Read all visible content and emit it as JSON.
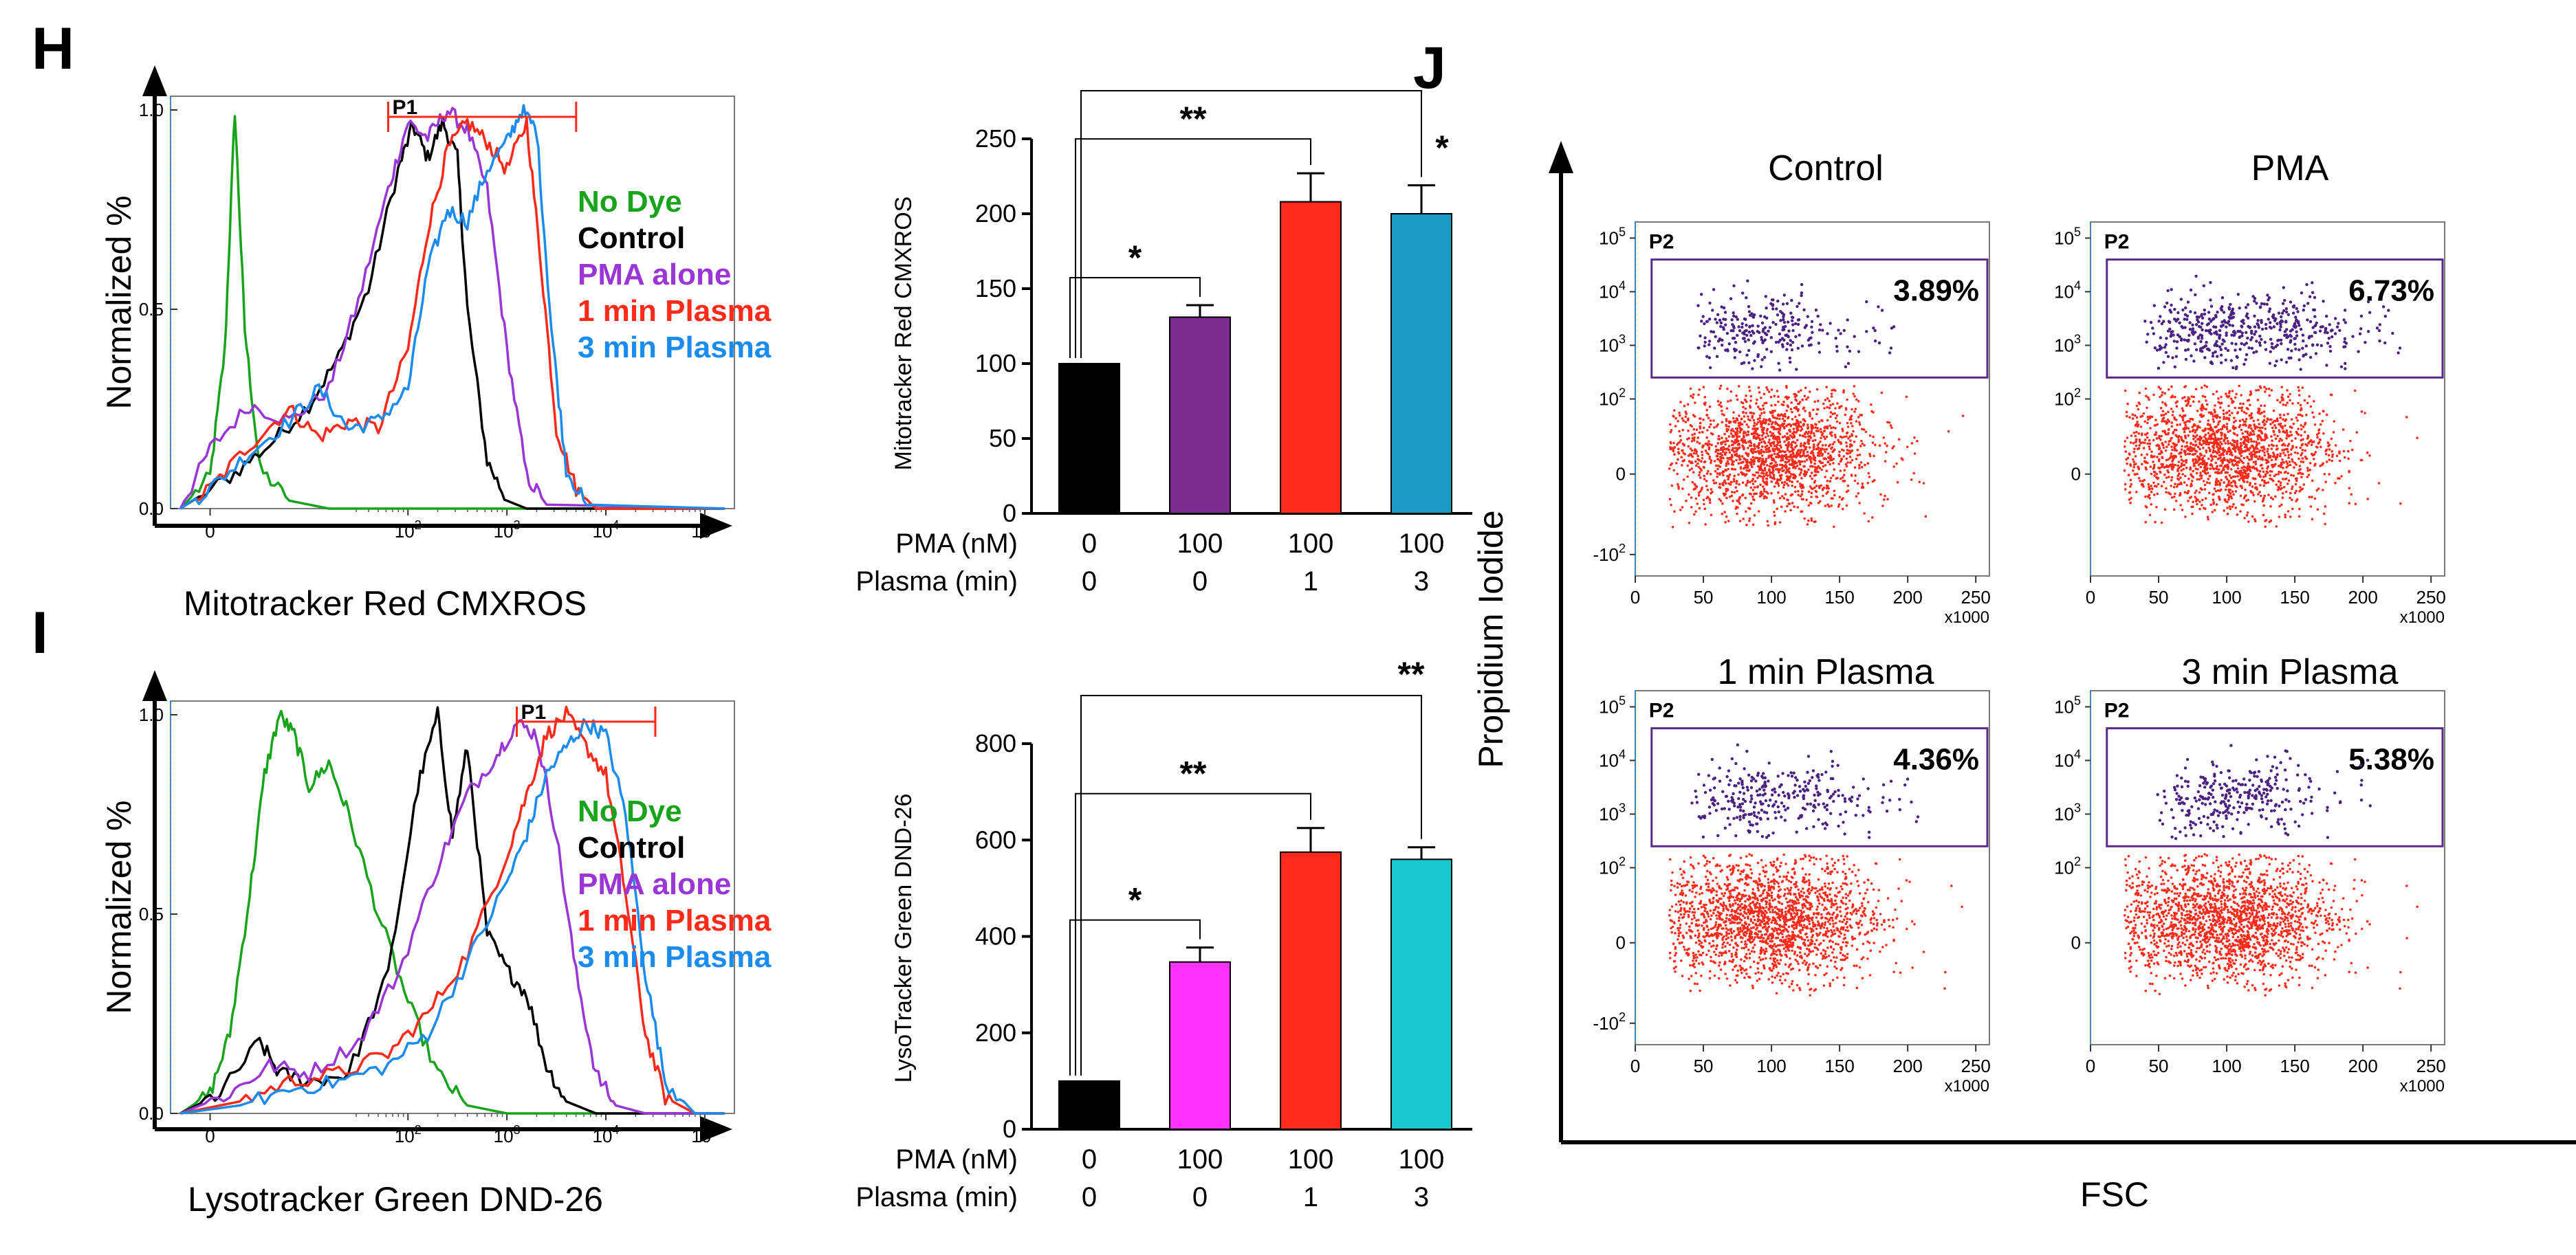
{
  "figure": {
    "panel_h": "H",
    "panel_i": "I",
    "panel_j": "J"
  },
  "colors": {
    "no_dye": "#18a31c",
    "control": "#000000",
    "pma": "#9a35d6",
    "plasma1": "#ff2a1a",
    "plasma3": "#1a8cf0",
    "bar_pma_mito": "#7b2d8e",
    "bar_pma_lyso": "#ff33ff",
    "bar_red": "#ff2a1a",
    "bar_teal_mito": "#1a9bc4",
    "bar_teal_lyso": "#17c9cf",
    "gate": "#5a2a8a",
    "dots_inside": "#4b2181",
    "dots_outside": "#ff2a1a"
  },
  "chart_data": [
    {
      "id": "H-histogram",
      "type": "line",
      "xlabel": "Mitotracker Red CMXROS",
      "ylabel": "Normalized %",
      "y_ticks": [
        "0.0",
        "0.5",
        "1.0"
      ],
      "x_ticks": [
        {
          "base": "0",
          "exp": ""
        },
        {
          "base": "10",
          "exp": "2"
        },
        {
          "base": "10",
          "exp": "3"
        },
        {
          "base": "10",
          "exp": "4"
        },
        {
          "base": "10",
          "exp": "5"
        }
      ],
      "xlim_decades": [
        -0.4,
        5.3
      ],
      "ylim": [
        0,
        1.0
      ],
      "gate": {
        "label": "P1",
        "from_decade": 1.8,
        "to_decade": 3.7
      },
      "legend": [
        "No Dye",
        "Control",
        "PMA alone",
        "1 min Plasma",
        "3 min Plasma"
      ],
      "series": [
        {
          "name": "No Dye",
          "points": [
            [
              -0.3,
              0.0
            ],
            [
              0.0,
              0.08
            ],
            [
              0.15,
              0.4
            ],
            [
              0.25,
              1.0
            ],
            [
              0.35,
              0.45
            ],
            [
              0.5,
              0.1
            ],
            [
              0.8,
              0.02
            ],
            [
              1.2,
              0.0
            ],
            [
              5.2,
              0.0
            ]
          ]
        },
        {
          "name": "Control",
          "points": [
            [
              -0.3,
              0.0
            ],
            [
              0.2,
              0.08
            ],
            [
              0.6,
              0.16
            ],
            [
              1.0,
              0.26
            ],
            [
              1.3,
              0.38
            ],
            [
              1.6,
              0.55
            ],
            [
              1.9,
              0.85
            ],
            [
              2.05,
              0.96
            ],
            [
              2.2,
              0.88
            ],
            [
              2.35,
              0.97
            ],
            [
              2.5,
              0.88
            ],
            [
              2.6,
              0.5
            ],
            [
              2.8,
              0.12
            ],
            [
              3.0,
              0.02
            ],
            [
              3.2,
              0.0
            ],
            [
              5.2,
              0.0
            ]
          ]
        },
        {
          "name": "PMA alone",
          "points": [
            [
              -0.3,
              0.0
            ],
            [
              0.0,
              0.15
            ],
            [
              0.4,
              0.26
            ],
            [
              0.8,
              0.22
            ],
            [
              1.2,
              0.3
            ],
            [
              1.5,
              0.52
            ],
            [
              1.8,
              0.8
            ],
            [
              2.0,
              0.97
            ],
            [
              2.2,
              0.93
            ],
            [
              2.4,
              1.0
            ],
            [
              2.6,
              0.95
            ],
            [
              2.8,
              0.8
            ],
            [
              3.0,
              0.4
            ],
            [
              3.2,
              0.08
            ],
            [
              3.4,
              0.01
            ],
            [
              5.2,
              0.0
            ]
          ]
        },
        {
          "name": "1 min Plasma",
          "points": [
            [
              -0.3,
              0.0
            ],
            [
              0.0,
              0.05
            ],
            [
              0.4,
              0.16
            ],
            [
              0.8,
              0.25
            ],
            [
              1.1,
              0.18
            ],
            [
              1.4,
              0.22
            ],
            [
              1.7,
              0.2
            ],
            [
              2.0,
              0.4
            ],
            [
              2.2,
              0.7
            ],
            [
              2.4,
              0.9
            ],
            [
              2.6,
              0.97
            ],
            [
              2.8,
              0.92
            ],
            [
              3.0,
              0.85
            ],
            [
              3.2,
              0.97
            ],
            [
              3.35,
              0.6
            ],
            [
              3.5,
              0.2
            ],
            [
              3.7,
              0.05
            ],
            [
              3.9,
              0.0
            ],
            [
              5.2,
              0.0
            ]
          ]
        },
        {
          "name": "3 min Plasma",
          "points": [
            [
              -0.3,
              0.0
            ],
            [
              0.0,
              0.05
            ],
            [
              0.4,
              0.14
            ],
            [
              0.8,
              0.22
            ],
            [
              1.1,
              0.3
            ],
            [
              1.4,
              0.2
            ],
            [
              1.7,
              0.22
            ],
            [
              2.0,
              0.3
            ],
            [
              2.2,
              0.6
            ],
            [
              2.4,
              0.75
            ],
            [
              2.6,
              0.72
            ],
            [
              2.8,
              0.85
            ],
            [
              3.0,
              0.92
            ],
            [
              3.15,
              1.0
            ],
            [
              3.3,
              0.95
            ],
            [
              3.45,
              0.45
            ],
            [
              3.6,
              0.1
            ],
            [
              3.8,
              0.01
            ],
            [
              5.2,
              0.0
            ]
          ]
        }
      ]
    },
    {
      "id": "H-bar",
      "type": "bar",
      "ylabel": "Mitotracker Red CMXROS",
      "ylim": [
        0,
        250
      ],
      "y_ticks": [
        0,
        50,
        100,
        150,
        200,
        250
      ],
      "values": [
        100,
        131,
        208,
        200
      ],
      "errors": [
        0,
        8,
        19,
        19
      ],
      "rows": [
        {
          "label": "PMA (nM)",
          "values": [
            "0",
            "100",
            "100",
            "100"
          ]
        },
        {
          "label": "Plasma (min)",
          "values": [
            "0",
            "0",
            "1",
            "3"
          ]
        }
      ],
      "significance": [
        {
          "from": 0,
          "to": 1,
          "label": "*"
        },
        {
          "from": 0,
          "to": 2,
          "label": "**"
        },
        {
          "from": 0,
          "to": 3,
          "label": "*"
        }
      ]
    },
    {
      "id": "I-histogram",
      "type": "line",
      "xlabel": "Lysotracker Green DND-26",
      "ylabel": "Normalized %",
      "y_ticks": [
        "0.0",
        "0.5",
        "1.0"
      ],
      "x_ticks": [
        {
          "base": "0",
          "exp": ""
        },
        {
          "base": "10",
          "exp": "2"
        },
        {
          "base": "10",
          "exp": "3"
        },
        {
          "base": "10",
          "exp": "4"
        },
        {
          "base": "10",
          "exp": "5"
        }
      ],
      "xlim_decades": [
        -0.4,
        5.3
      ],
      "ylim": [
        0,
        1.0
      ],
      "gate": {
        "label": "P1",
        "from_decade": 3.1,
        "to_decade": 4.5
      },
      "legend": [
        "No Dye",
        "Control",
        "PMA alone",
        "1 min Plasma",
        "3 min Plasma"
      ],
      "series": [
        {
          "name": "No Dye",
          "points": [
            [
              -0.3,
              0.0
            ],
            [
              0.0,
              0.05
            ],
            [
              0.2,
              0.2
            ],
            [
              0.4,
              0.55
            ],
            [
              0.55,
              0.85
            ],
            [
              0.7,
              1.0
            ],
            [
              0.85,
              0.95
            ],
            [
              1.0,
              0.82
            ],
            [
              1.2,
              0.88
            ],
            [
              1.4,
              0.75
            ],
            [
              1.7,
              0.5
            ],
            [
              2.0,
              0.28
            ],
            [
              2.3,
              0.1
            ],
            [
              2.6,
              0.02
            ],
            [
              3.0,
              0.0
            ],
            [
              5.2,
              0.0
            ]
          ]
        },
        {
          "name": "Control",
          "points": [
            [
              -0.3,
              0.0
            ],
            [
              0.1,
              0.05
            ],
            [
              0.5,
              0.18
            ],
            [
              0.7,
              0.1
            ],
            [
              1.0,
              0.08
            ],
            [
              1.4,
              0.1
            ],
            [
              1.8,
              0.35
            ],
            [
              2.1,
              0.82
            ],
            [
              2.3,
              1.0
            ],
            [
              2.45,
              0.7
            ],
            [
              2.6,
              0.92
            ],
            [
              2.8,
              0.45
            ],
            [
              3.0,
              0.36
            ],
            [
              3.2,
              0.3
            ],
            [
              3.4,
              0.12
            ],
            [
              3.6,
              0.03
            ],
            [
              3.9,
              0.0
            ],
            [
              5.2,
              0.0
            ]
          ]
        },
        {
          "name": "PMA alone",
          "points": [
            [
              -0.3,
              0.0
            ],
            [
              0.2,
              0.05
            ],
            [
              0.6,
              0.12
            ],
            [
              1.0,
              0.1
            ],
            [
              1.5,
              0.18
            ],
            [
              1.9,
              0.35
            ],
            [
              2.3,
              0.62
            ],
            [
              2.6,
              0.8
            ],
            [
              2.9,
              0.9
            ],
            [
              3.1,
              0.98
            ],
            [
              3.3,
              0.95
            ],
            [
              3.5,
              0.7
            ],
            [
              3.7,
              0.35
            ],
            [
              3.9,
              0.1
            ],
            [
              4.1,
              0.02
            ],
            [
              4.4,
              0.0
            ],
            [
              5.2,
              0.0
            ]
          ]
        },
        {
          "name": "1 min Plasma",
          "points": [
            [
              -0.3,
              0.0
            ],
            [
              0.3,
              0.03
            ],
            [
              0.8,
              0.08
            ],
            [
              1.3,
              0.1
            ],
            [
              1.8,
              0.15
            ],
            [
              2.2,
              0.25
            ],
            [
              2.6,
              0.4
            ],
            [
              3.0,
              0.65
            ],
            [
              3.2,
              0.8
            ],
            [
              3.4,
              0.95
            ],
            [
              3.6,
              1.0
            ],
            [
              3.8,
              0.92
            ],
            [
              4.0,
              0.85
            ],
            [
              4.2,
              0.55
            ],
            [
              4.4,
              0.2
            ],
            [
              4.6,
              0.04
            ],
            [
              4.9,
              0.0
            ],
            [
              5.2,
              0.0
            ]
          ]
        },
        {
          "name": "3 min Plasma",
          "points": [
            [
              -0.3,
              0.0
            ],
            [
              0.3,
              0.02
            ],
            [
              0.8,
              0.06
            ],
            [
              1.3,
              0.08
            ],
            [
              1.8,
              0.12
            ],
            [
              2.2,
              0.2
            ],
            [
              2.6,
              0.38
            ],
            [
              3.0,
              0.58
            ],
            [
              3.2,
              0.7
            ],
            [
              3.4,
              0.85
            ],
            [
              3.6,
              0.92
            ],
            [
              3.8,
              0.98
            ],
            [
              4.0,
              0.95
            ],
            [
              4.2,
              0.75
            ],
            [
              4.4,
              0.35
            ],
            [
              4.6,
              0.08
            ],
            [
              4.9,
              0.0
            ],
            [
              5.2,
              0.0
            ]
          ]
        }
      ]
    },
    {
      "id": "I-bar",
      "type": "bar",
      "ylabel": "LysoTracker Green DND-26",
      "ylim": [
        0,
        800
      ],
      "y_ticks": [
        0,
        200,
        400,
        600,
        800
      ],
      "values": [
        100,
        347,
        575,
        560
      ],
      "errors": [
        0,
        30,
        50,
        25
      ],
      "rows": [
        {
          "label": "PMA (nM)",
          "values": [
            "0",
            "100",
            "100",
            "100"
          ]
        },
        {
          "label": "Plasma (min)",
          "values": [
            "0",
            "0",
            "1",
            "3"
          ]
        }
      ],
      "significance": [
        {
          "from": 0,
          "to": 1,
          "label": "*"
        },
        {
          "from": 0,
          "to": 2,
          "label": "**"
        },
        {
          "from": 0,
          "to": 3,
          "label": "**"
        }
      ]
    },
    {
      "id": "J-scatter",
      "type": "scatter",
      "xlabel": "FSC",
      "ylabel": "Propidium Iodide",
      "x_ticks": [
        "0",
        "50",
        "100",
        "150",
        "200",
        "250"
      ],
      "x_scale_label": "x1000",
      "y_ticks_left": [
        {
          "base": "10",
          "exp": "5"
        },
        {
          "base": "10",
          "exp": "4"
        },
        {
          "base": "10",
          "exp": "3"
        },
        {
          "base": "10",
          "exp": "2"
        },
        {
          "base": "0",
          "exp": ""
        },
        {
          "base": "-10",
          "exp": "2"
        }
      ],
      "y_ticks_right": [
        {
          "base": "10",
          "exp": "5"
        },
        {
          "base": "10",
          "exp": "4"
        },
        {
          "base": "10",
          "exp": "3"
        },
        {
          "base": "10",
          "exp": "2"
        },
        {
          "base": "0",
          "exp": ""
        }
      ],
      "panels": [
        {
          "title": "Control",
          "gate": "P2",
          "percent": "3.89%",
          "ticks": "left",
          "inside_count": 260,
          "outside_count": 1800,
          "inside_x_range": [
            50,
            130
          ]
        },
        {
          "title": "PMA",
          "gate": "P2",
          "percent": "6.73%",
          "ticks": "right",
          "inside_count": 480,
          "outside_count": 1800,
          "inside_x_range": [
            50,
            170
          ]
        },
        {
          "title": "1 min Plasma",
          "gate": "P2",
          "percent": "4.36%",
          "ticks": "left",
          "inside_count": 300,
          "outside_count": 1900,
          "inside_x_range": [
            50,
            150
          ]
        },
        {
          "title": "3 min Plasma",
          "gate": "P2",
          "percent": "5.38%",
          "ticks": "right",
          "inside_count": 300,
          "outside_count": 1900,
          "inside_x_range": [
            60,
            150
          ]
        }
      ]
    }
  ]
}
